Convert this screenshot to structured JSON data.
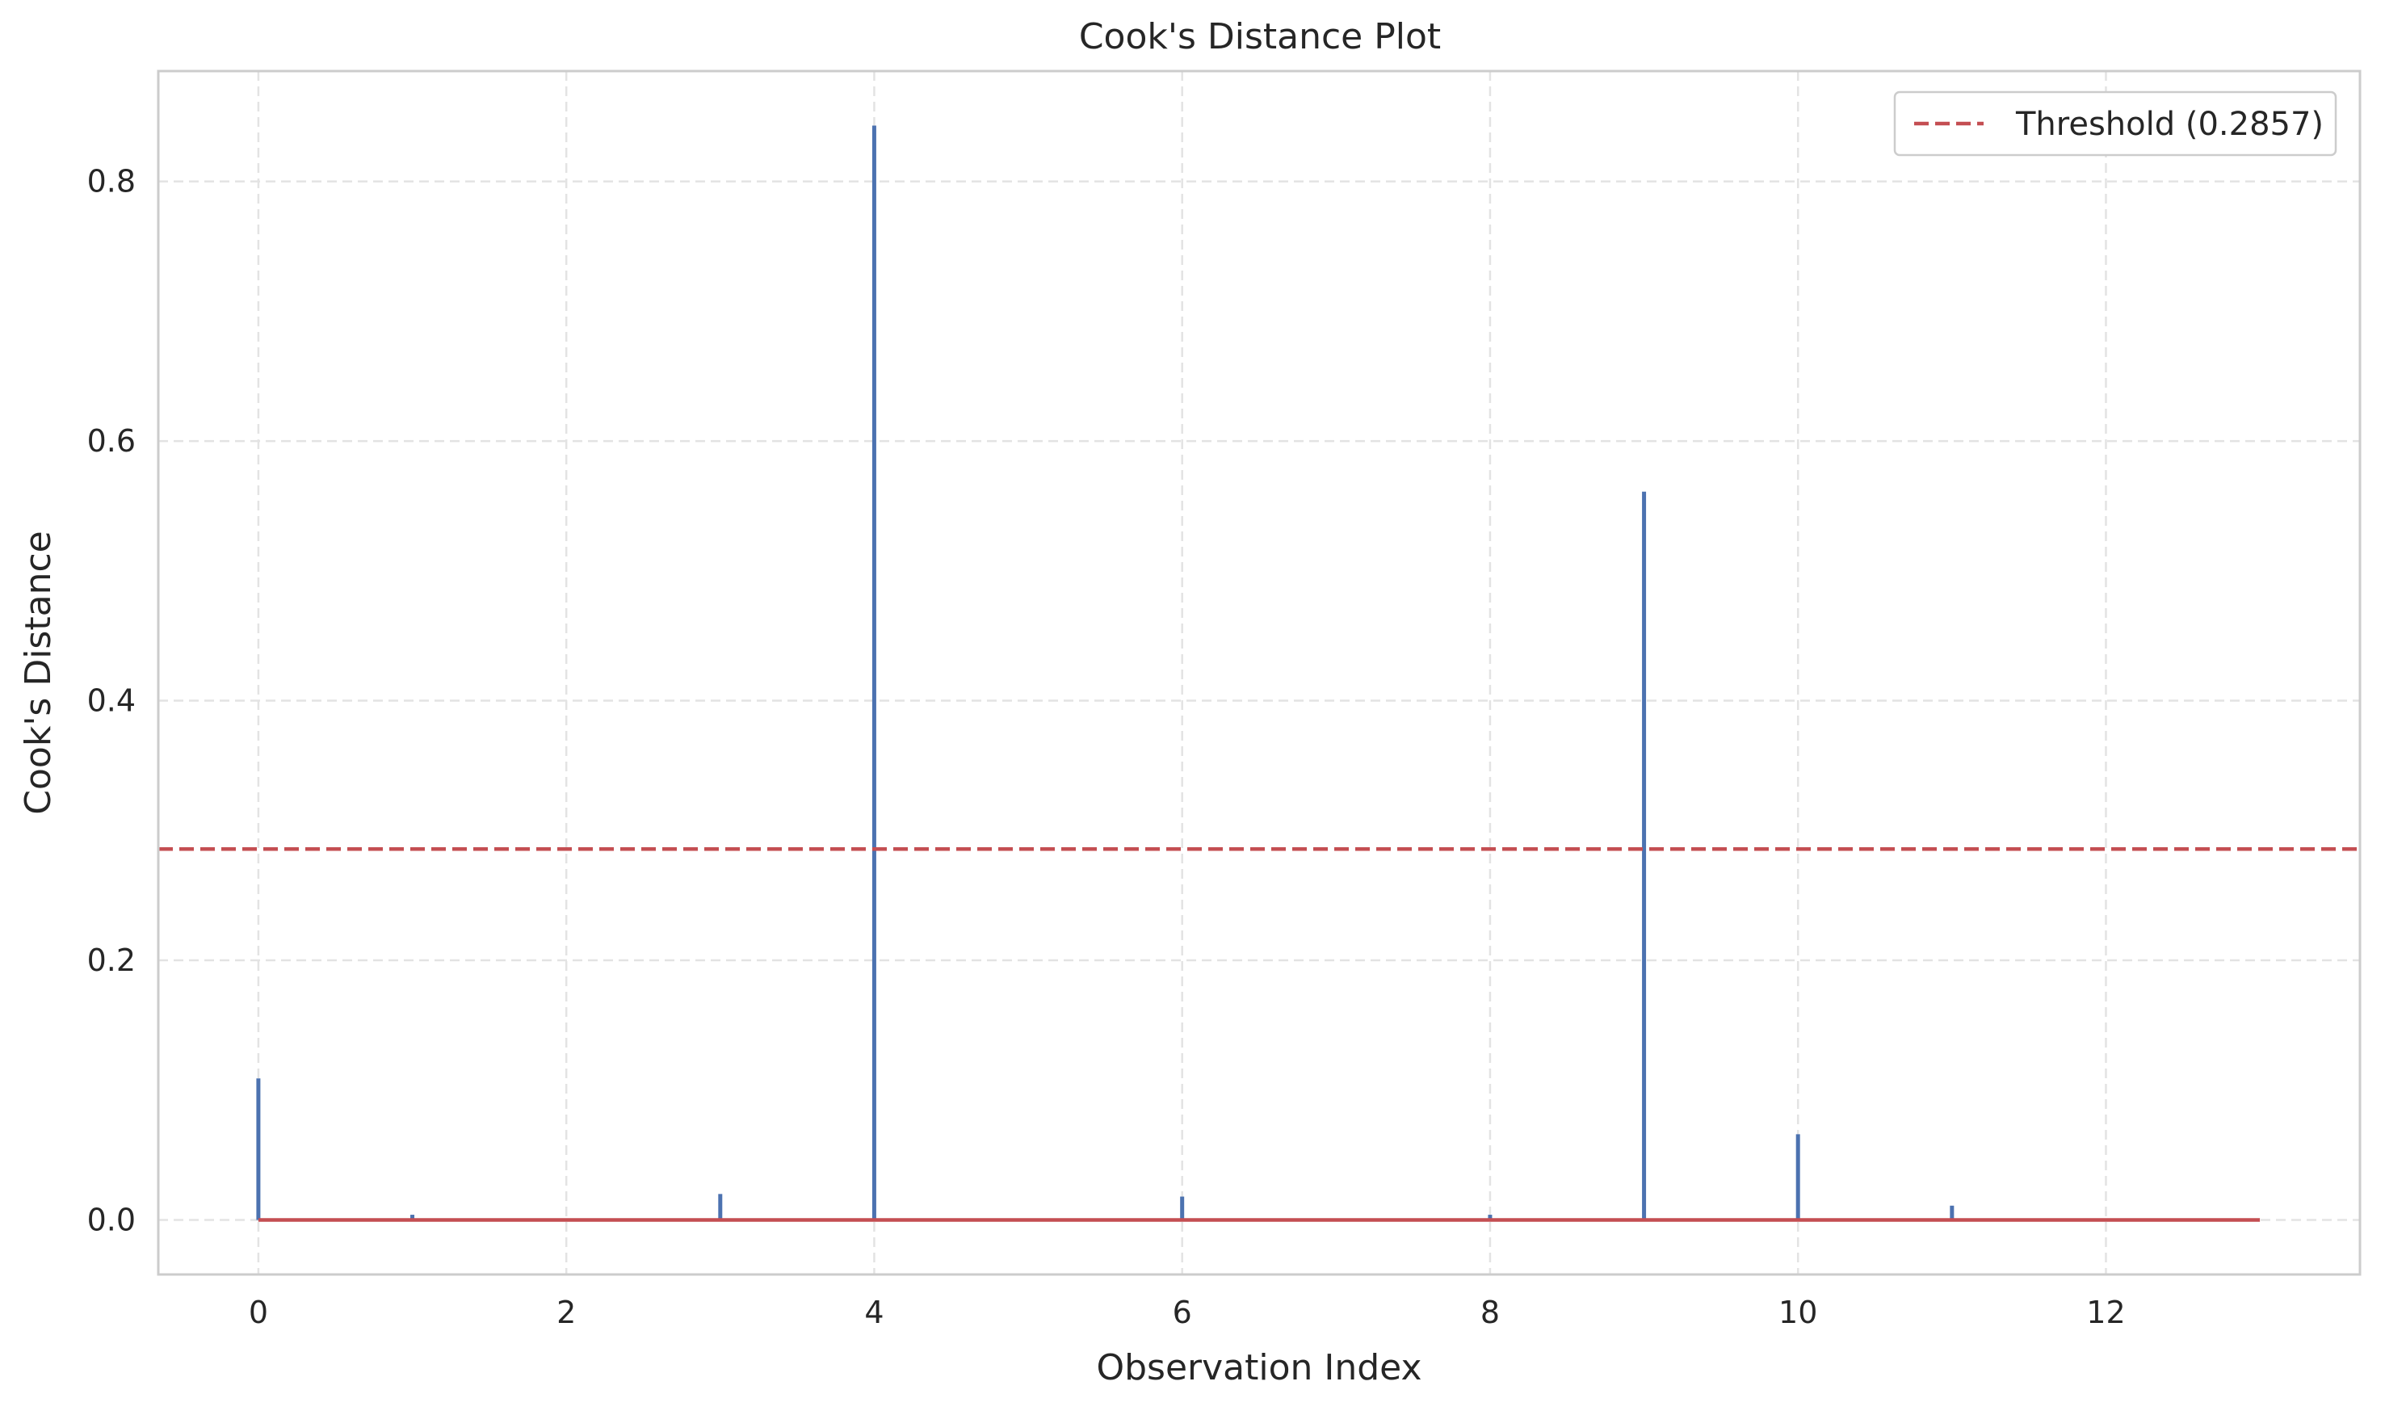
{
  "chart_data": {
    "type": "stem",
    "title": "Cook's Distance Plot",
    "xlabel": "Observation Index",
    "ylabel": "Cook's Distance",
    "xlim": [
      -0.65,
      13.65
    ],
    "ylim": [
      -0.042,
      0.885
    ],
    "xticks": [
      0,
      2,
      4,
      6,
      8,
      10,
      12
    ],
    "xtick_labels": [
      "0",
      "2",
      "4",
      "6",
      "8",
      "10",
      "12"
    ],
    "yticks": [
      0.0,
      0.2,
      0.4,
      0.6,
      0.8
    ],
    "ytick_labels": [
      "0.0",
      "0.2",
      "0.4",
      "0.6",
      "0.8"
    ],
    "grid": true,
    "legend_position": "top-right",
    "series": [
      {
        "x": [
          0,
          1,
          2,
          3,
          4,
          5,
          6,
          7,
          8,
          9,
          10,
          11,
          12,
          13
        ],
        "values": [
          0.109,
          0.004,
          0.0,
          0.02,
          0.843,
          0.0,
          0.018,
          0.0,
          0.004,
          0.561,
          0.066,
          0.011,
          0.0,
          0.0
        ],
        "color": "#4c72b0"
      }
    ],
    "baseline": {
      "value": 0.0,
      "color": "#c44e52"
    },
    "threshold": {
      "name": "Threshold (0.2857)",
      "value": 0.2857,
      "color": "#c44e52",
      "style": "dashed"
    }
  }
}
